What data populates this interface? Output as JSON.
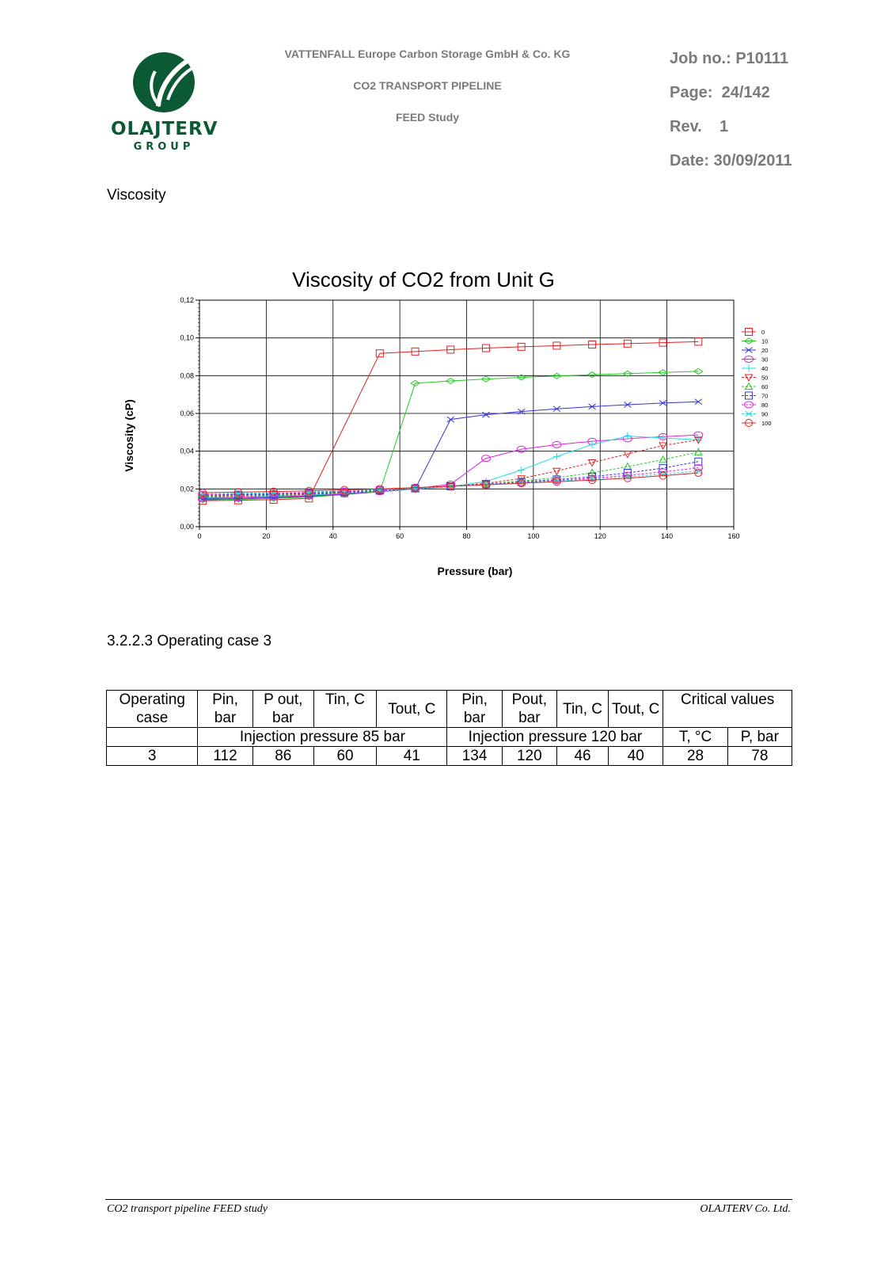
{
  "header": {
    "logo_word": "OLAJTERV",
    "logo_sub": "GROUP",
    "company": "VATTENFALL Europe Carbon Storage GmbH & Co. KG",
    "project": "CO2 TRANSPORT PIPELINE",
    "study": "FEED Study",
    "job": "Job no.: P10111",
    "page": "Page:  24/142",
    "rev": "Rev.    1",
    "date": "Date: 30/09/2011",
    "brand_color": "#0c5a35"
  },
  "section_title": "Viscosity",
  "subsection_title": "3.2.2.3 Operating case 3",
  "chart_data": {
    "type": "line",
    "title": "Viscosity of CO2 from Unit G",
    "xlabel": "Pressure (bar)",
    "ylabel": "Viscosity (cP)",
    "xlim": [
      0,
      160
    ],
    "ylim": [
      0,
      0.12
    ],
    "x_ticks": [
      "0",
      "20",
      "40",
      "60",
      "80",
      "100",
      "120",
      "140",
      "160"
    ],
    "y_ticks": [
      "0,00",
      "0,02",
      "0,04",
      "0,06",
      "0,08",
      "0,10",
      "0,12"
    ],
    "grid": true,
    "legend_position": "right",
    "x": [
      1,
      11.6,
      22.2,
      32.8,
      43.4,
      54,
      64.6,
      75.2,
      85.8,
      96.4,
      107,
      117.6,
      128.2,
      138.8,
      149.4
    ],
    "series": [
      {
        "name": "0",
        "color": "#e02020",
        "marker": "square",
        "dash": false,
        "values": [
          0.0138,
          0.014,
          0.0143,
          0.015,
          null,
          0.0918,
          0.0928,
          0.0938,
          0.0946,
          0.0953,
          0.0959,
          0.0965,
          0.097,
          0.0975,
          0.098
        ]
      },
      {
        "name": "10",
        "color": "#22cc22",
        "marker": "diamond",
        "dash": false,
        "values": [
          0.0142,
          0.0145,
          0.015,
          0.0157,
          0.017,
          0.0185,
          0.076,
          0.0772,
          0.0782,
          0.0791,
          0.0798,
          0.0805,
          0.0811,
          0.0817,
          0.0823
        ]
      },
      {
        "name": "20",
        "color": "#3333dd",
        "marker": "x",
        "dash": false,
        "values": [
          0.0146,
          0.0149,
          0.0154,
          0.0161,
          0.0172,
          0.0185,
          0.02,
          0.0568,
          0.0593,
          0.061,
          0.0624,
          0.0636,
          0.0646,
          0.0655,
          0.0662
        ]
      },
      {
        "name": "30",
        "color": "#dd22dd",
        "marker": "hexagon",
        "dash": false,
        "values": [
          0.015,
          0.0153,
          0.0158,
          0.0164,
          0.0174,
          0.0186,
          0.0202,
          0.0225,
          0.0362,
          0.041,
          0.0435,
          0.0452,
          0.0466,
          0.0477,
          0.0486
        ]
      },
      {
        "name": "40",
        "color": "#22dddd",
        "marker": "plus",
        "dash": false,
        "values": [
          0.0154,
          0.0157,
          0.0162,
          0.0168,
          0.0177,
          0.0188,
          0.02,
          0.0212,
          0.024,
          0.03,
          0.0372,
          0.0435,
          0.048,
          0.047,
          0.046
        ]
      },
      {
        "name": "50",
        "color": "#e02020",
        "marker": "triangle-down",
        "dash": true,
        "values": [
          0.0158,
          0.0161,
          0.0165,
          0.0171,
          0.0179,
          0.0189,
          0.0201,
          0.0214,
          0.023,
          0.0255,
          0.0295,
          0.034,
          0.0385,
          0.043,
          0.046
        ]
      },
      {
        "name": "60",
        "color": "#22cc22",
        "marker": "triangle",
        "dash": true,
        "values": [
          0.0162,
          0.0165,
          0.0169,
          0.0174,
          0.0182,
          0.0191,
          0.0202,
          0.0214,
          0.0226,
          0.0242,
          0.026,
          0.0285,
          0.0318,
          0.0355,
          0.0395
        ]
      },
      {
        "name": "70",
        "color": "#3333dd",
        "marker": "square",
        "dash": true,
        "values": [
          0.0166,
          0.0169,
          0.0172,
          0.0177,
          0.0184,
          0.0193,
          0.0203,
          0.0214,
          0.0225,
          0.0237,
          0.025,
          0.0265,
          0.0285,
          0.031,
          0.0345
        ]
      },
      {
        "name": "80",
        "color": "#dd22dd",
        "marker": "hexagon",
        "dash": true,
        "values": [
          0.017,
          0.0173,
          0.0176,
          0.018,
          0.0187,
          0.0195,
          0.0204,
          0.0214,
          0.0224,
          0.0234,
          0.0245,
          0.0257,
          0.0272,
          0.029,
          0.0312
        ]
      },
      {
        "name": "90",
        "color": "#22dddd",
        "marker": "x",
        "dash": true,
        "values": [
          0.0174,
          0.0177,
          0.018,
          0.0184,
          0.019,
          0.0197,
          0.0205,
          0.0214,
          0.0223,
          0.0232,
          0.0242,
          0.0252,
          0.0264,
          0.0278,
          0.0295
        ]
      },
      {
        "name": "100",
        "color": "#e02020",
        "marker": "circle",
        "dash": false,
        "values": [
          0.018,
          0.0183,
          0.0186,
          0.019,
          0.0195,
          0.02,
          0.0207,
          0.0214,
          0.0222,
          0.023,
          0.0238,
          0.0247,
          0.0257,
          0.027,
          0.0285
        ]
      }
    ]
  },
  "table": {
    "header_row1": [
      "Operating case",
      "Pin, bar",
      "P out, bar",
      "Tin, C",
      "Tout, C",
      "Pin, bar",
      "Pout, bar",
      "Tin, C",
      "Tout, C",
      "Critical values"
    ],
    "header_row2": [
      "",
      "Injection pressure 85 bar",
      "Injection pressure 120 bar",
      "T, °C",
      "P, bar"
    ],
    "rows": [
      [
        "3",
        "112",
        "86",
        "60",
        "41",
        "134",
        "120",
        "46",
        "40",
        "28",
        "78"
      ]
    ]
  },
  "footer": {
    "left": "CO2 transport pipeline FEED study",
    "right": "OLAJTERV Co. Ltd."
  }
}
